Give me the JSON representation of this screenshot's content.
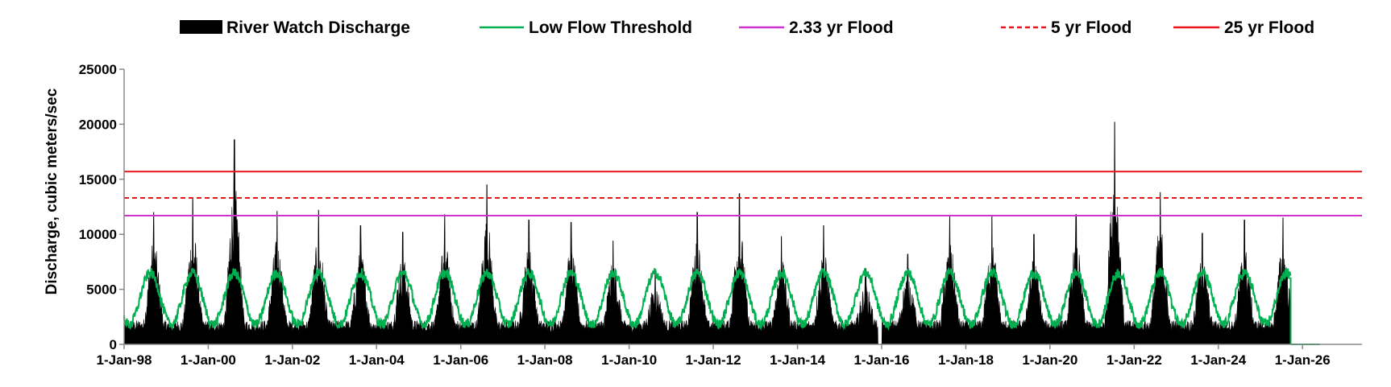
{
  "chart_data": {
    "type": "area",
    "title": "",
    "xlabel": "",
    "ylabel": "Discharge, cubic meters/sec",
    "ylim": [
      0,
      25000
    ],
    "yticks": [
      0,
      5000,
      10000,
      15000,
      20000,
      25000
    ],
    "ytick_labels": [
      "0",
      "5000",
      "10000",
      "15000",
      "20000",
      "25000"
    ],
    "xlim": [
      "1998-01-01",
      "2027-06-01"
    ],
    "xticks": [
      "1998-01-01",
      "2000-01-01",
      "2002-01-01",
      "2004-01-01",
      "2006-01-01",
      "2008-01-01",
      "2010-01-01",
      "2012-01-01",
      "2014-01-01",
      "2016-01-01",
      "2018-01-01",
      "2020-01-01",
      "2022-01-01",
      "2024-01-01",
      "2026-01-01"
    ],
    "xtick_labels": [
      "1-Jan-98",
      "1-Jan-00",
      "1-Jan-02",
      "1-Jan-04",
      "1-Jan-06",
      "1-Jan-08",
      "1-Jan-10",
      "1-Jan-12",
      "1-Jan-14",
      "1-Jan-16",
      "1-Jan-18",
      "1-Jan-20",
      "1-Jan-22",
      "1-Jan-24",
      "1-Jan-26"
    ],
    "grid": false,
    "legend_position": "top",
    "series": [
      {
        "name": "River Watch Discharge",
        "style": "filled area",
        "color": "#000000",
        "peaks": [
          {
            "date": "1998-09-15",
            "value": 12000
          },
          {
            "date": "1999-08-20",
            "value": 13200
          },
          {
            "date": "2000-08-15",
            "value": 18600
          },
          {
            "date": "2001-08-20",
            "value": 12100
          },
          {
            "date": "2002-08-15",
            "value": 12200
          },
          {
            "date": "2003-08-15",
            "value": 10800
          },
          {
            "date": "2004-08-15",
            "value": 10200
          },
          {
            "date": "2005-08-15",
            "value": 11800
          },
          {
            "date": "2006-08-15",
            "value": 14500
          },
          {
            "date": "2007-08-15",
            "value": 11300
          },
          {
            "date": "2008-08-15",
            "value": 11100
          },
          {
            "date": "2009-08-15",
            "value": 9400
          },
          {
            "date": "2010-08-15",
            "value": 6800
          },
          {
            "date": "2011-08-15",
            "value": 12000
          },
          {
            "date": "2012-08-15",
            "value": 13700
          },
          {
            "date": "2013-08-15",
            "value": 9800
          },
          {
            "date": "2014-08-15",
            "value": 10800
          },
          {
            "date": "2015-08-15",
            "value": 6900
          },
          {
            "date": "2016-08-15",
            "value": 8200
          },
          {
            "date": "2017-08-15",
            "value": 11700
          },
          {
            "date": "2018-08-15",
            "value": 11700
          },
          {
            "date": "2019-08-15",
            "value": 10000
          },
          {
            "date": "2020-08-15",
            "value": 11800
          },
          {
            "date": "2021-07-15",
            "value": 20200
          },
          {
            "date": "2022-08-15",
            "value": 13800
          },
          {
            "date": "2023-08-15",
            "value": 10100
          },
          {
            "date": "2024-08-15",
            "value": 11300
          },
          {
            "date": "2025-07-15",
            "value": 11500
          }
        ],
        "data_gaps": [
          {
            "start": "2015-12-01",
            "end": "2016-01-05",
            "value": 0
          },
          {
            "start": "2025-09-20",
            "end": "2026-06-01",
            "value": 0
          }
        ],
        "dry_season_minimum": 2000
      },
      {
        "name": "Low Flow Threshold",
        "style": "solid line",
        "color": "#00B050",
        "seasonal_max": 6500,
        "seasonal_min": 1800,
        "peak_month": "August",
        "trough_month": "February",
        "end": "2025-09-20"
      },
      {
        "name": "2.33 yr Flood",
        "style": "solid line",
        "color": "#CC33CC",
        "value": 11700
      },
      {
        "name": "5 yr Flood",
        "style": "dashed line",
        "color": "#E8141A",
        "value": 13300
      },
      {
        "name": "25 yr Flood",
        "style": "solid line",
        "color": "#E8141A",
        "value": 15700
      }
    ]
  }
}
